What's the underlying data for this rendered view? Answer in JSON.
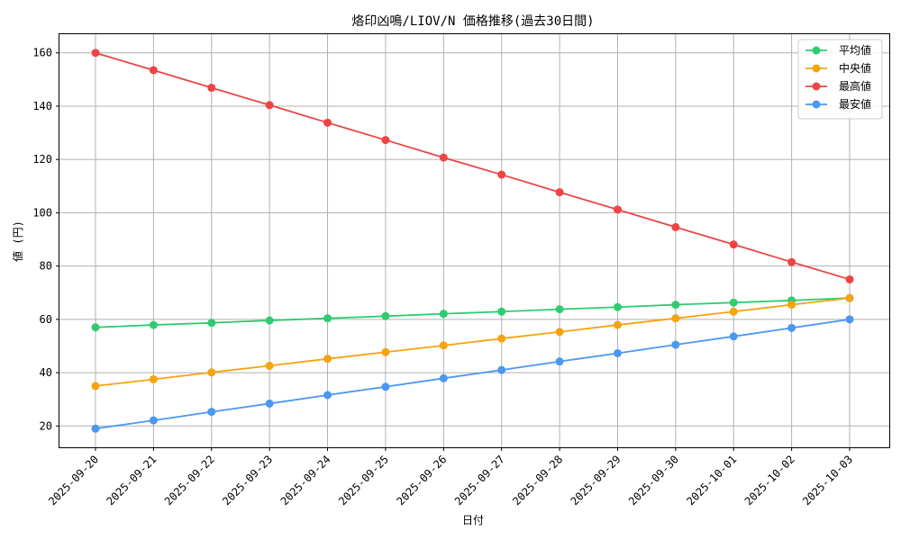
{
  "chart_data": {
    "type": "line",
    "title": "烙印凶鳴/LIOV/N 価格推移(過去30日間)",
    "xlabel": "日付",
    "ylabel": "値 (円)",
    "ylim": [
      12,
      167
    ],
    "yticks": [
      20,
      40,
      60,
      80,
      100,
      120,
      140,
      160
    ],
    "grid": true,
    "legend_position": "top-right",
    "categories": [
      "2025-09-20",
      "2025-09-21",
      "2025-09-22",
      "2025-09-23",
      "2025-09-24",
      "2025-09-25",
      "2025-09-26",
      "2025-09-27",
      "2025-09-28",
      "2025-09-29",
      "2025-09-30",
      "2025-10-01",
      "2025-10-02",
      "2025-10-03"
    ],
    "series": [
      {
        "name": "平均値",
        "color": "#2ecc71",
        "values": [
          57.0,
          57.9,
          58.7,
          59.6,
          60.4,
          61.2,
          62.1,
          62.9,
          63.8,
          64.6,
          65.5,
          66.3,
          67.1,
          68.0
        ]
      },
      {
        "name": "中央値",
        "color": "#f5a30f",
        "values": [
          35.0,
          37.5,
          40.1,
          42.6,
          45.2,
          47.7,
          50.2,
          52.8,
          55.3,
          57.9,
          60.4,
          62.9,
          65.5,
          68.0
        ]
      },
      {
        "name": "最高値",
        "color": "#ef4444",
        "values": [
          160.0,
          153.5,
          146.9,
          140.4,
          133.8,
          127.3,
          120.7,
          114.3,
          107.7,
          101.2,
          94.6,
          88.1,
          81.5,
          75.0
        ]
      },
      {
        "name": "最安値",
        "color": "#4a98f0",
        "values": [
          19.0,
          22.1,
          25.3,
          28.4,
          31.6,
          34.7,
          37.9,
          41.0,
          44.2,
          47.3,
          50.5,
          53.6,
          56.8,
          60.0
        ]
      }
    ]
  }
}
